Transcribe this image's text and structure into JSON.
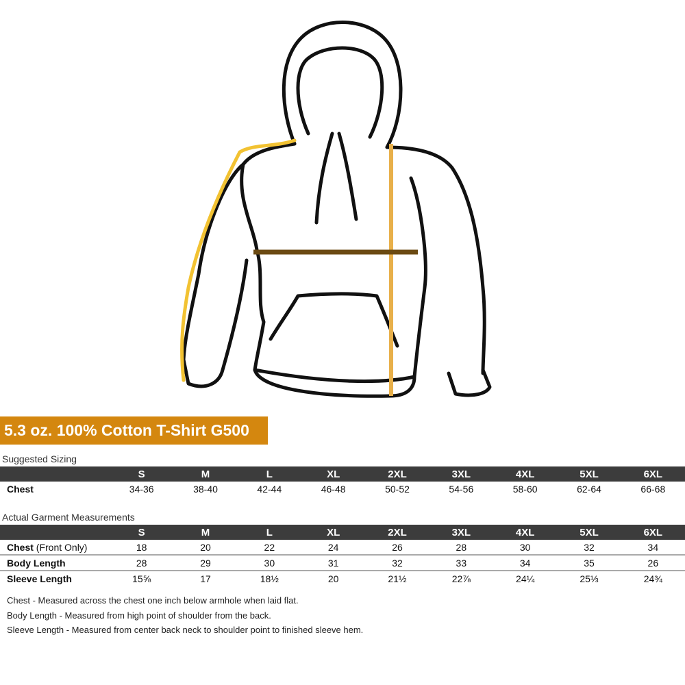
{
  "product_title": "5.3 oz. 100% Cotton T-Shirt G500",
  "colors": {
    "banner": "#d4870f",
    "table_header": "#3c3c3c",
    "sleeve_line": "#f2c232",
    "chest_line": "#6b4a12",
    "body_line": "#e8b04a"
  },
  "sizes": [
    "S",
    "M",
    "L",
    "XL",
    "2XL",
    "3XL",
    "4XL",
    "5XL",
    "6XL"
  ],
  "suggested_sizing": {
    "title": "Suggested Sizing",
    "rows": [
      {
        "label": "Chest",
        "values": [
          "34-36",
          "38-40",
          "42-44",
          "46-48",
          "50-52",
          "54-56",
          "58-60",
          "62-64",
          "66-68"
        ]
      }
    ]
  },
  "actual_measurements": {
    "title": "Actual Garment Measurements",
    "rows": [
      {
        "label": "Chest",
        "sublabel": "(Front Only)",
        "values": [
          "18",
          "20",
          "22",
          "24",
          "26",
          "28",
          "30",
          "32",
          "34"
        ]
      },
      {
        "label": "Body Length",
        "values": [
          "28",
          "29",
          "30",
          "31",
          "32",
          "33",
          "34",
          "35",
          "26"
        ]
      },
      {
        "label": "Sleeve Length",
        "values": [
          "15⅝",
          "17",
          "18½",
          "20",
          "21½",
          "22⅞",
          "24¼",
          "25⅓",
          "24¾"
        ]
      }
    ]
  },
  "notes": [
    "Chest - Measured across the chest one inch below armhole when laid flat.",
    "Body Length - Measured from high point of shoulder from the back.",
    "Sleeve Length - Measured from center back neck to shoulder point to finished sleeve hem."
  ]
}
